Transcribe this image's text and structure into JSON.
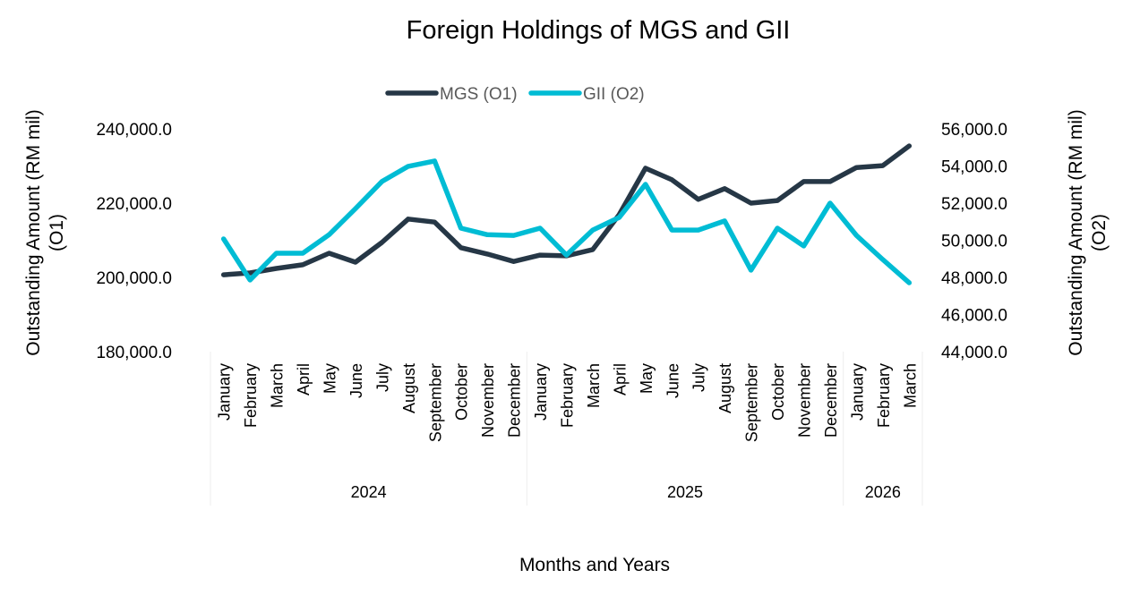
{
  "chart_data": {
    "type": "line",
    "title": "Foreign Holdings of MGS and GII",
    "xlabel": "Months and Years",
    "ylabel_left": "Outstanding Amount (RM mil) (O1)",
    "ylabel_right": "Outstanding Amount (RM mil) (O2)",
    "ylim_left": [
      180000,
      240000
    ],
    "ylim_right": [
      44000,
      56000
    ],
    "yticks_left": [
      "180,000.0",
      "200,000.0",
      "220,000.0",
      "240,000.0"
    ],
    "yticks_right": [
      "44,000.0",
      "46,000.0",
      "48,000.0",
      "50,000.0",
      "52,000.0",
      "54,000.0",
      "56,000.0"
    ],
    "grid": false,
    "legend_position": "top",
    "year_groups": [
      {
        "year": "2024",
        "months": [
          "January",
          "February",
          "March",
          "April",
          "May",
          "June",
          "July",
          "August",
          "September",
          "October",
          "November",
          "December"
        ]
      },
      {
        "year": "2025",
        "months": [
          "January",
          "February",
          "March",
          "April",
          "May",
          "June",
          "July",
          "August",
          "September",
          "October",
          "November",
          "December"
        ]
      },
      {
        "year": "2026",
        "months": [
          "January",
          "February",
          "March"
        ]
      }
    ],
    "series": [
      {
        "name": "MGS (O1)",
        "axis": "left",
        "color": "#263746",
        "values": [
          200700,
          201200,
          202400,
          203400,
          206500,
          204100,
          209400,
          215700,
          214900,
          208000,
          206300,
          204300,
          206000,
          205800,
          207500,
          216900,
          229400,
          226300,
          221000,
          223900,
          220000,
          220700,
          225800,
          225800,
          229600,
          230100,
          235400
        ]
      },
      {
        "name": "GII (O2)",
        "axis": "right",
        "color": "#00BCD4",
        "values": [
          50070,
          47860,
          49300,
          49300,
          50300,
          51700,
          53160,
          53980,
          54270,
          50650,
          50300,
          50260,
          50650,
          49200,
          50550,
          51230,
          53010,
          50550,
          50550,
          51040,
          48390,
          50650,
          49690,
          52000,
          50260,
          48960,
          47710
        ]
      }
    ]
  }
}
